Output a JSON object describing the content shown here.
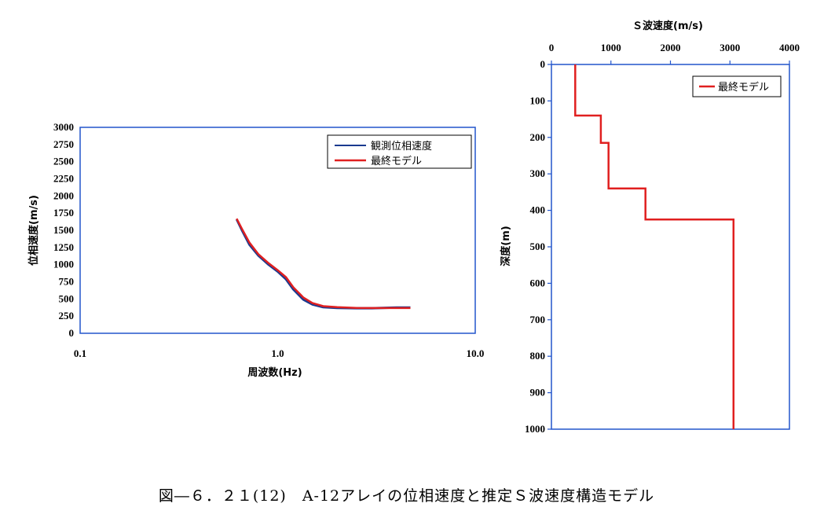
{
  "caption": "図―６．２１(12)　A-12アレイの位相速度と推定Ｓ波速度構造モデル",
  "colors": {
    "frame": "#2255cc",
    "observed": "#1a3a8f",
    "model": "#e02020"
  },
  "chart_data": [
    {
      "type": "line",
      "xlabel": "周波数(Hz)",
      "ylabel": "位相速度(m/s)",
      "xscale": "log",
      "xlim": [
        0.1,
        10.0
      ],
      "ylim": [
        0,
        3000
      ],
      "xticks": [
        "0.1",
        "1.0",
        "10.0"
      ],
      "xtick_values": [
        0.1,
        1.0,
        10.0
      ],
      "yticks": [
        "0",
        "250",
        "500",
        "750",
        "1000",
        "1250",
        "1500",
        "1750",
        "2000",
        "2250",
        "2500",
        "2750",
        "3000"
      ],
      "ytick_values": [
        0,
        250,
        500,
        750,
        1000,
        1250,
        1500,
        1750,
        2000,
        2250,
        2500,
        2750,
        3000
      ],
      "legend_position": "top-right",
      "series": [
        {
          "name": "観測位相速度",
          "color": "#1a3a8f",
          "x": [
            0.62,
            0.66,
            0.72,
            0.8,
            0.9,
            1.0,
            1.1,
            1.2,
            1.35,
            1.5,
            1.7,
            2.0,
            2.5,
            3.0,
            4.0,
            4.7
          ],
          "y": [
            1660,
            1500,
            1290,
            1130,
            1000,
            900,
            790,
            640,
            490,
            420,
            380,
            370,
            365,
            365,
            375,
            375
          ]
        },
        {
          "name": "最終モデル",
          "color": "#e02020",
          "x": [
            0.62,
            0.66,
            0.72,
            0.8,
            0.9,
            1.0,
            1.1,
            1.2,
            1.35,
            1.5,
            1.7,
            2.0,
            2.5,
            3.0,
            4.0,
            4.7
          ],
          "y": [
            1670,
            1520,
            1320,
            1150,
            1020,
            920,
            820,
            670,
            520,
            440,
            395,
            380,
            370,
            368,
            368,
            368
          ]
        }
      ]
    },
    {
      "type": "line",
      "title": "Ｓ波速度(m/s)",
      "ylabel": "深度(m)",
      "xlim": [
        0,
        4000
      ],
      "ylim": [
        0,
        1000
      ],
      "y_inverted": true,
      "x_axis_position": "top",
      "xticks": [
        "0",
        "1000",
        "2000",
        "3000",
        "4000"
      ],
      "xtick_values": [
        0,
        1000,
        2000,
        3000,
        4000
      ],
      "yticks": [
        "0",
        "100",
        "200",
        "300",
        "400",
        "500",
        "600",
        "700",
        "800",
        "900",
        "1000"
      ],
      "ytick_values": [
        0,
        100,
        200,
        300,
        400,
        500,
        600,
        700,
        800,
        900,
        1000
      ],
      "legend_position": "top-right",
      "series": [
        {
          "name": "最終モデル",
          "color": "#e02020",
          "x": [
            400,
            400,
            830,
            830,
            960,
            960,
            1580,
            1580,
            3060,
            3060
          ],
          "y": [
            0,
            140,
            140,
            215,
            215,
            340,
            340,
            425,
            425,
            1000
          ]
        }
      ]
    }
  ]
}
